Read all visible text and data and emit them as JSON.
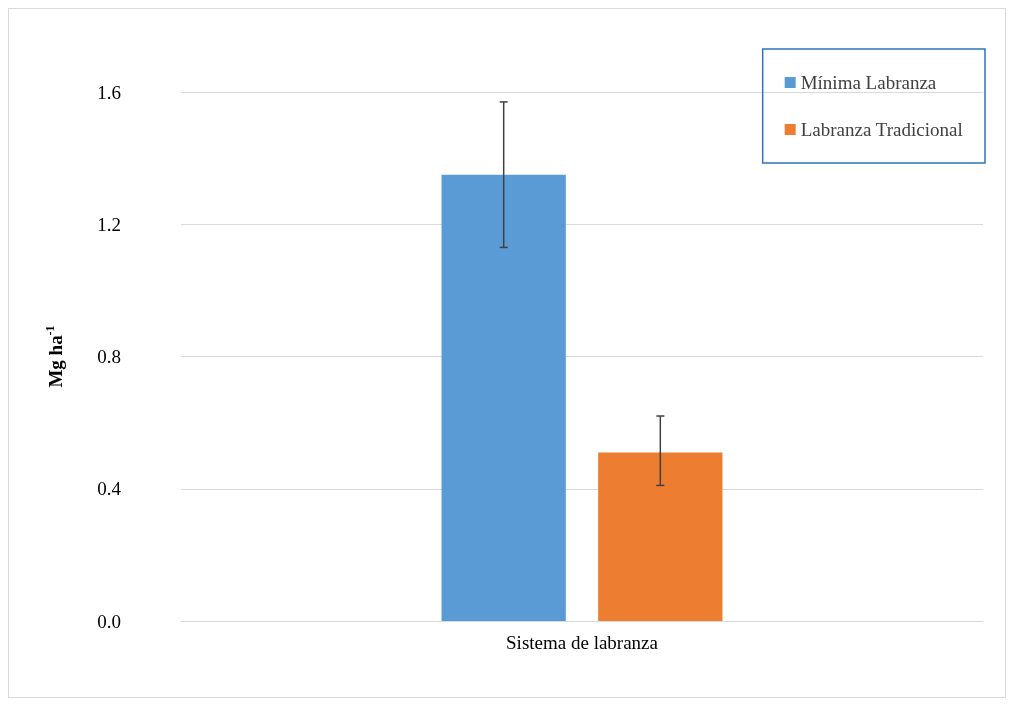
{
  "chart_data": {
    "type": "bar",
    "ylabel": "Mg ha$^{-1}$",
    "categories": [
      "Sistema de labranza"
    ],
    "series": [
      {
        "name": "Mínima Labranza",
        "color": "#5b9bd5",
        "values": [
          1.35
        ],
        "errors": [
          [
            1.13,
            1.57
          ]
        ]
      },
      {
        "name": "Labranza Tradicional",
        "color": "#ed7d31",
        "values": [
          0.51
        ],
        "errors": [
          [
            0.41,
            0.62
          ]
        ]
      }
    ],
    "ylim": [
      0,
      1.6
    ],
    "yticks": [
      {
        "value": 0,
        "label": "0.0"
      },
      {
        "value": 0.4,
        "label": "0.4"
      },
      {
        "value": 0.8,
        "label": "0.8"
      },
      {
        "value": 1.2,
        "label": "1.2"
      },
      {
        "value": 1.6,
        "label": "1.6"
      }
    ],
    "grid": "y",
    "legend": "top right"
  }
}
